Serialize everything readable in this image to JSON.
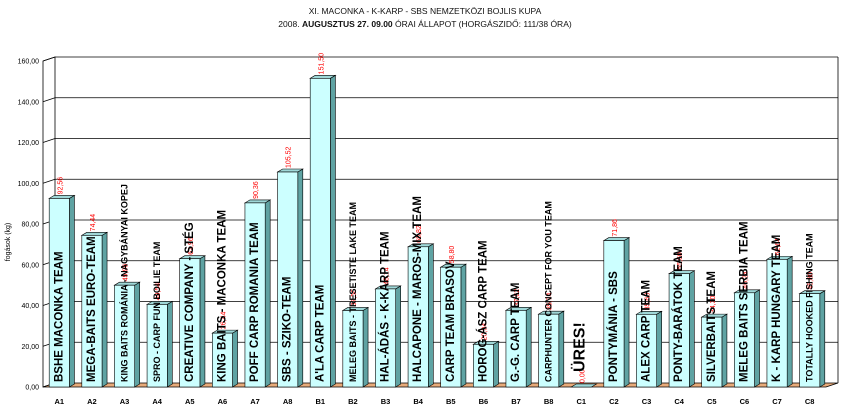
{
  "chart_data": {
    "type": "bar",
    "title": "XI.  MACONKA - K-KARP - SBS NEMZETKÖZI BOJLIS KUPA",
    "subtitle": {
      "prefix": "2008.",
      "bold": "AUGUSZTUS 27. 09.00",
      "suffix": "ÓRAI ÁLLAPOT (HORGÁSZIDŐ: 111/38 ÓRA)"
    },
    "ylabel": "fogások (kg)",
    "ylim": [
      0,
      160
    ],
    "yticks": [
      "0,00",
      "20,00",
      "40,00",
      "60,00",
      "80,00",
      "100,00",
      "120,00",
      "140,00",
      "160,00"
    ],
    "grid": true,
    "categories": [
      "A1",
      "A2",
      "A3",
      "A4",
      "A5",
      "A6",
      "A7",
      "A8",
      "B1",
      "B2",
      "B3",
      "B4",
      "B5",
      "B6",
      "B7",
      "B8",
      "C1",
      "C2",
      "C3",
      "C4",
      "C5",
      "C6",
      "C7",
      "C8"
    ],
    "values": [
      92.56,
      74.44,
      49.96,
      40.54,
      62.96,
      26.44,
      90.36,
      105.52,
      151.5,
      37.56,
      48.14,
      68.82,
      58.8,
      20.94,
      37.62,
      35.74,
      0.0,
      71.86,
      35.68,
      55.6,
      34.3,
      46.24,
      62.64,
      45.8
    ],
    "value_labels": [
      "92,56",
      "74,44",
      "49,96",
      "40,54",
      "62,96",
      "26,44",
      "90,36",
      "105,52",
      "151,50",
      "37,56",
      "48,14",
      "68,82",
      "58,80",
      "20,94",
      "37,62",
      "35,74",
      "0,00",
      "71,86",
      "35,68",
      "55,60",
      "34,30",
      "46,24",
      "62,64",
      "45,80"
    ],
    "team_names": [
      "BSHE MACONKA TEAM",
      "MEGA-BAITS EURO-TEAM",
      "KING BAITS ROMÁNIA - NAGYBÁNYAI KOPEJ",
      "SPRO - CARP FUN BOILIE TEAM",
      "CREATIVE COMPANY - STÉG",
      "KING BAITS - MACONKA TEAM",
      "POFF CARP ROMANIA TEAM",
      "SBS - SZIKO-TEAM",
      "A'LA CARP TEAM",
      "MELEG BAITS - TRESETISTE LAKE TEAM",
      "HAL-ÁDÁS - K-KARP TEAM",
      "HALCAPONE - MAROS-MIX TEAM",
      "CARP TEAM BRASOV",
      "HOROG-ÁSZ CARP TEAM",
      "G.-G. CARP TEAM",
      "CARPHUNTER CONCEPT FOR YOU TEAM",
      "ÜRES!",
      "PONTYMÁNIA - SBS",
      "ALEX CARP TEAM",
      "PONTY-BARÁTOK TEAM",
      "SILVERBAITS TEAM",
      "MELEG BAITS SERBIA TEAM",
      "K - KARP HUNGARY TEAM",
      "TOTALLY HOOKED FISHING TEAM"
    ],
    "colors": {
      "bar_front": "#ccffff",
      "bar_side": "#5fa3a3",
      "bar_top": "#9fd8d8",
      "bar_edge": "#000000",
      "floor": "#e8ab7a",
      "value_label": "#ff0000",
      "grid": "#000000",
      "team_text": "#000000"
    }
  }
}
